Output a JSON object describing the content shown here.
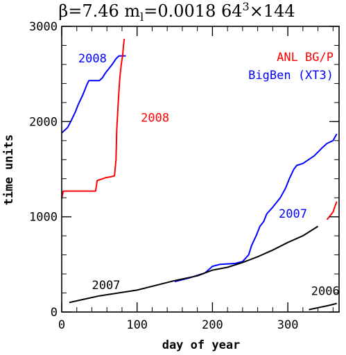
{
  "chart_data": {
    "type": "line",
    "title": {
      "beta_symbol": "β",
      "beta_rest": "=7.46  m",
      "mass_sub": "l",
      "mass_rest": "=0.0018  64",
      "lattice_sup": "3",
      "lattice_rest": "×144"
    },
    "xlabel": "day of year",
    "ylabel": "time units",
    "xlim": [
      0,
      368
    ],
    "ylim": [
      0,
      3000
    ],
    "xticks": [
      0,
      100,
      200,
      300
    ],
    "yticks": [
      0,
      1000,
      2000,
      3000
    ],
    "legend": {
      "placement": "top-right",
      "entries": [
        {
          "label": "ANL BG/P",
          "color": "#ff0000"
        },
        {
          "label": "BigBen (XT3)",
          "color": "#0000ff"
        }
      ]
    },
    "annotations": [
      {
        "text": "2008",
        "color": "#0000ff",
        "x": 22,
        "y": 2620
      },
      {
        "text": "2008",
        "color": "#ff0000",
        "x": 105,
        "y": 2000
      },
      {
        "text": "2007",
        "color": "#0000ff",
        "x": 288,
        "y": 990
      },
      {
        "text": "2007",
        "color": "#000000",
        "x": 40,
        "y": 240
      },
      {
        "text": "2006",
        "color": "#000000",
        "x": 331,
        "y": 180
      }
    ],
    "series": [
      {
        "color": "#0000ff",
        "points": [
          [
            0,
            1880
          ],
          [
            8,
            1940
          ],
          [
            12,
            2000
          ],
          [
            18,
            2100
          ],
          [
            22,
            2180
          ],
          [
            28,
            2280
          ],
          [
            33,
            2380
          ],
          [
            36,
            2430
          ],
          [
            50,
            2430
          ],
          [
            54,
            2460
          ],
          [
            58,
            2510
          ],
          [
            63,
            2560
          ],
          [
            67,
            2600
          ],
          [
            72,
            2660
          ],
          [
            76,
            2690
          ],
          [
            85,
            2690
          ]
        ]
      },
      {
        "color": "#ff0000",
        "points": [
          [
            0,
            1190
          ],
          [
            2,
            1270
          ],
          [
            45,
            1270
          ],
          [
            47,
            1380
          ],
          [
            58,
            1410
          ],
          [
            65,
            1420
          ],
          [
            70,
            1430
          ],
          [
            72,
            1600
          ],
          [
            73,
            1900
          ],
          [
            75,
            2200
          ],
          [
            77,
            2450
          ],
          [
            79,
            2600
          ],
          [
            81,
            2700
          ],
          [
            82,
            2800
          ],
          [
            83,
            2870
          ]
        ]
      },
      {
        "color": "#0000ff",
        "points": [
          [
            150,
            320
          ],
          [
            170,
            360
          ],
          [
            190,
            410
          ],
          [
            200,
            480
          ],
          [
            210,
            500
          ],
          [
            230,
            510
          ],
          [
            240,
            530
          ],
          [
            248,
            600
          ],
          [
            252,
            700
          ],
          [
            258,
            800
          ],
          [
            263,
            900
          ],
          [
            268,
            950
          ],
          [
            272,
            1030
          ],
          [
            280,
            1100
          ],
          [
            290,
            1200
          ],
          [
            297,
            1300
          ],
          [
            302,
            1400
          ],
          [
            308,
            1500
          ],
          [
            312,
            1540
          ],
          [
            320,
            1560
          ],
          [
            335,
            1640
          ],
          [
            345,
            1720
          ],
          [
            352,
            1770
          ],
          [
            360,
            1800
          ],
          [
            365,
            1870
          ]
        ]
      },
      {
        "color": "#000000",
        "points": [
          [
            10,
            100
          ],
          [
            50,
            170
          ],
          [
            100,
            230
          ],
          [
            150,
            330
          ],
          [
            180,
            380
          ],
          [
            200,
            440
          ],
          [
            220,
            470
          ],
          [
            240,
            520
          ],
          [
            260,
            580
          ],
          [
            280,
            650
          ],
          [
            300,
            730
          ],
          [
            320,
            800
          ],
          [
            340,
            900
          ]
        ]
      },
      {
        "color": "#000000",
        "points": [
          [
            328,
            25
          ],
          [
            340,
            45
          ],
          [
            355,
            70
          ],
          [
            365,
            90
          ]
        ]
      },
      {
        "color": "#ff0000",
        "points": [
          [
            352,
            970
          ],
          [
            356,
            1010
          ],
          [
            360,
            1050
          ],
          [
            363,
            1120
          ],
          [
            365,
            1160
          ]
        ]
      }
    ]
  }
}
